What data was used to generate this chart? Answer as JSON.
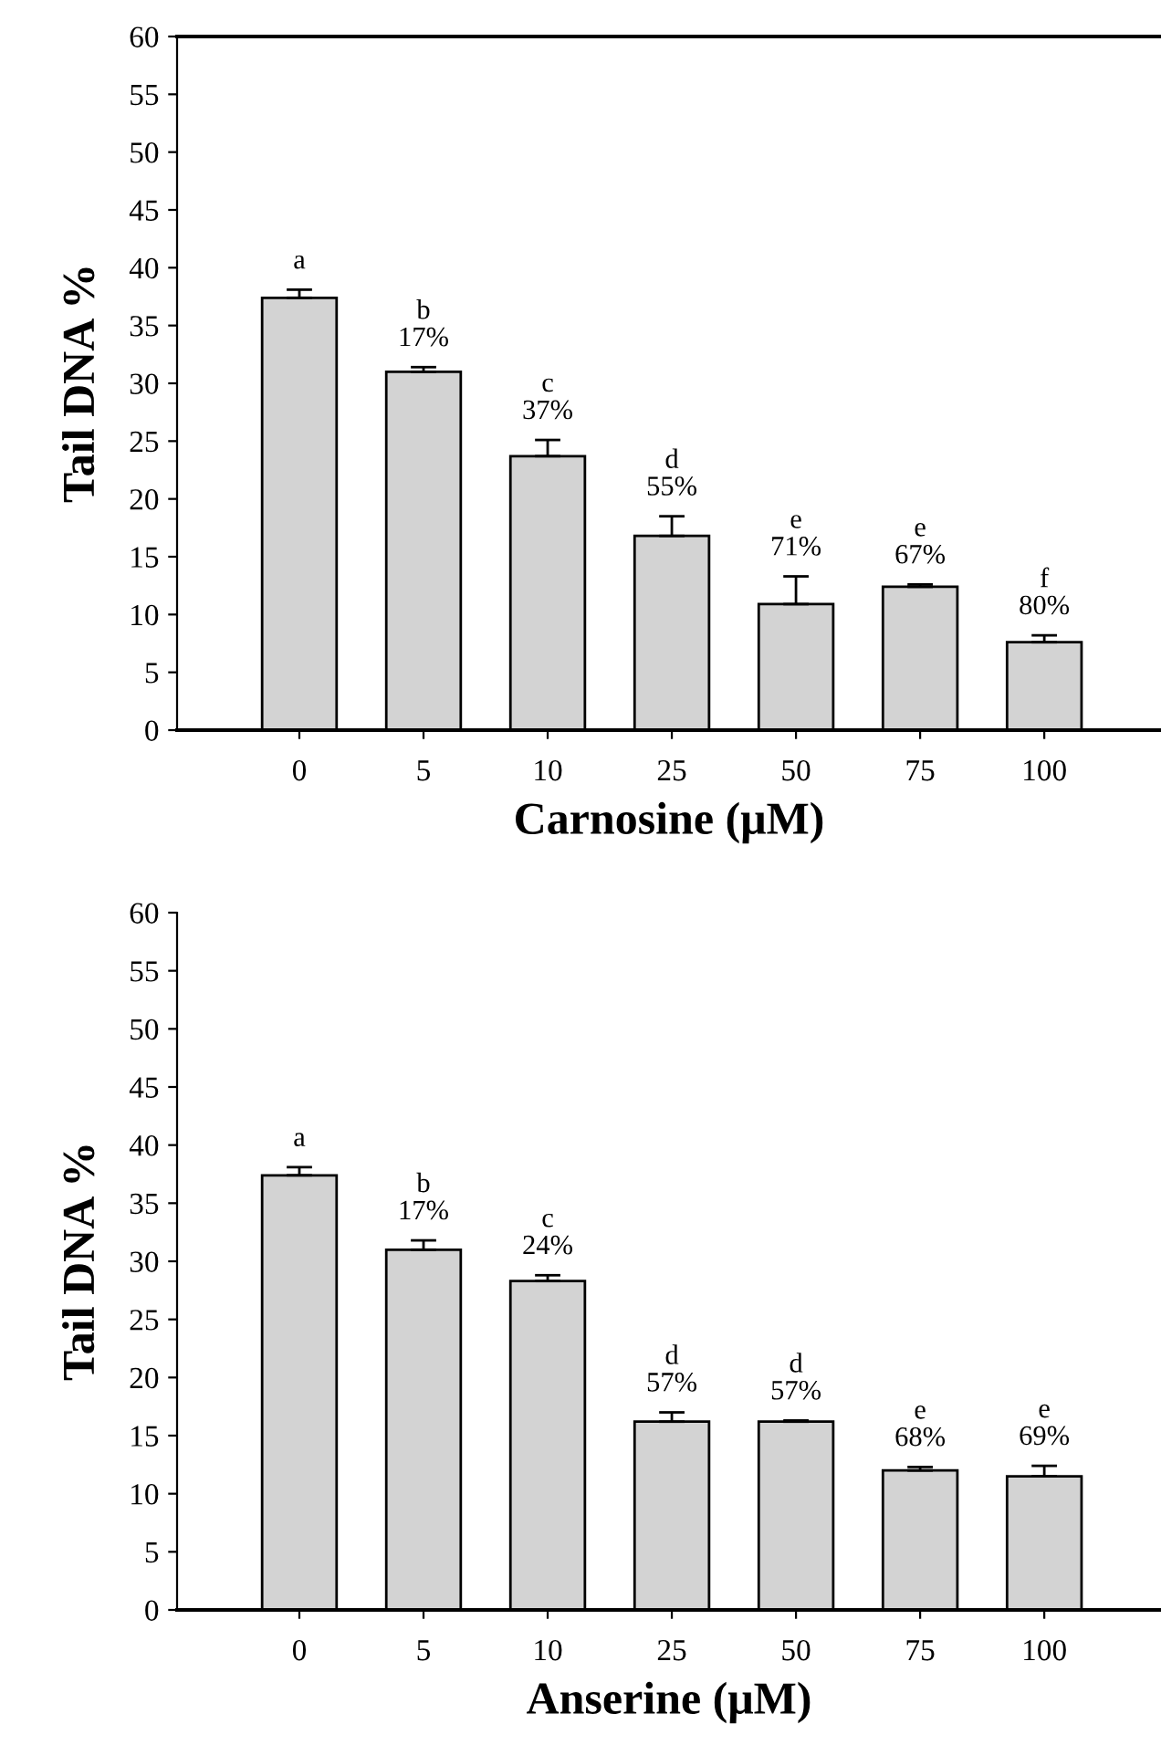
{
  "chart_data": [
    {
      "type": "bar",
      "categories": [
        "0",
        "5",
        "10",
        "25",
        "50",
        "75",
        "100"
      ],
      "xlabel": "Carnosine (μM)",
      "ylabel": "Tail DNA %",
      "color": "#d3d3d3",
      "values": [
        37.4,
        31.0,
        23.7,
        16.8,
        10.9,
        12.4,
        7.6
      ],
      "errors": [
        [
          37.4,
          38.1
        ],
        [
          31.0,
          31.4
        ],
        [
          23.7,
          25.1
        ],
        [
          16.8,
          18.5
        ],
        [
          10.9,
          13.3
        ],
        [
          12.4,
          12.6
        ],
        [
          7.6,
          8.2
        ]
      ],
      "value_labels": [
        "a",
        "b\n17%",
        "c\n37%",
        "d\n55%",
        "e\n71%",
        "e\n67%",
        "f\n80%"
      ],
      "ylim": [
        0,
        60
      ],
      "yticks": [
        0,
        5,
        10,
        15,
        20,
        25,
        30,
        35,
        40,
        45,
        50,
        55,
        60
      ],
      "grid": false,
      "legend": false
    },
    {
      "type": "bar",
      "categories": [
        "0",
        "5",
        "10",
        "25",
        "50",
        "75",
        "100"
      ],
      "xlabel": "Anserine (μM)",
      "ylabel": "Tail DNA %",
      "color": "#d3d3d3",
      "values": [
        37.4,
        31.0,
        28.3,
        16.2,
        16.2,
        12.0,
        11.5
      ],
      "errors": [
        [
          37.4,
          38.1
        ],
        [
          31.0,
          31.8
        ],
        [
          28.3,
          28.8
        ],
        [
          16.2,
          17.0
        ],
        [
          16.2,
          16.3
        ],
        [
          12.0,
          12.3
        ],
        [
          11.5,
          12.4
        ]
      ],
      "value_labels": [
        "a",
        "b\n17%",
        "c\n24%",
        "d\n57%",
        "d\n57%",
        "e\n68%",
        "e\n69%"
      ],
      "ylim": [
        0,
        60
      ],
      "yticks": [
        0,
        5,
        10,
        15,
        20,
        25,
        30,
        35,
        40,
        45,
        50,
        55,
        60
      ],
      "grid": false,
      "legend": false
    }
  ]
}
